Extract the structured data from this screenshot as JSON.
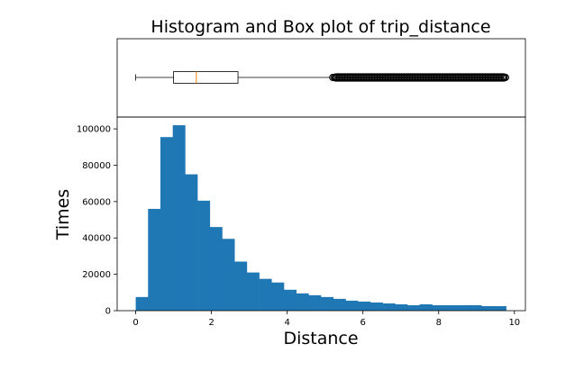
{
  "chart_data": {
    "title": "Histogram and Box plot of trip_distance",
    "type": "histogram",
    "colors": {
      "bar": "#1f77b4",
      "median": "#ff7f0e",
      "axis": "#000000"
    },
    "histogram": {
      "xlabel": "Distance",
      "ylabel": "Times",
      "xlim": [
        -0.49,
        10.29
      ],
      "ylim": [
        0,
        106500
      ],
      "bin_width": 0.326,
      "bin_starts": [
        0.0,
        0.326,
        0.652,
        0.978,
        1.304,
        1.63,
        1.956,
        2.282,
        2.608,
        2.934,
        3.26,
        3.586,
        3.912,
        4.238,
        4.564,
        4.89,
        5.216,
        5.542,
        5.868,
        6.194,
        6.52,
        6.846,
        7.172,
        7.498,
        7.824,
        8.15,
        8.476,
        8.802,
        9.128,
        9.454
      ],
      "values": [
        7500,
        56000,
        95500,
        102000,
        75000,
        60500,
        46000,
        39500,
        27000,
        21000,
        17500,
        15500,
        11500,
        9500,
        8500,
        7500,
        6500,
        5500,
        5000,
        4500,
        4000,
        3500,
        3000,
        3500,
        3000,
        3000,
        3000,
        3000,
        2500,
        2500
      ],
      "xticks": [
        0,
        2,
        4,
        6,
        8,
        10
      ],
      "xtick_labels": [
        "0",
        "2",
        "4",
        "6",
        "8",
        "10"
      ],
      "yticks": [
        0,
        20000,
        40000,
        60000,
        80000,
        100000
      ],
      "ytick_labels": [
        "0",
        "20000",
        "40000",
        "60000",
        "80000",
        "100000"
      ]
    },
    "boxplot": {
      "whisker_low": 0.0,
      "q1": 1.0,
      "median": 1.6,
      "q3": 2.7,
      "whisker_high": 5.2,
      "outliers_from": 5.2,
      "outliers_to": 9.8
    }
  }
}
